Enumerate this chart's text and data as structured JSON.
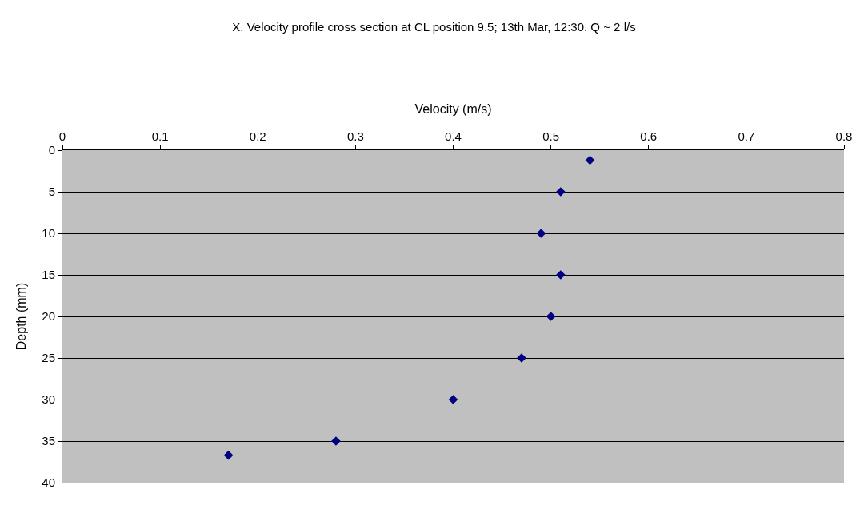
{
  "chart_data": {
    "type": "scatter",
    "title": "X. Velocity profile cross section at CL position 9.5; 13th Mar, 12:30. Q ~ 2 l/s",
    "xlabel": "Velocity (m/s)",
    "ylabel": "Depth (mm)",
    "x": [
      0.54,
      0.51,
      0.49,
      0.51,
      0.5,
      0.47,
      0.4,
      0.28,
      0.17
    ],
    "series": [
      {
        "color": "#000080",
        "values": [
          1.2,
          5,
          10,
          15,
          20,
          25,
          30,
          35,
          36.7
        ]
      }
    ],
    "xlim": [
      0,
      0.8
    ],
    "xticks": [
      0,
      0.1,
      0.2,
      0.3,
      0.4,
      0.5,
      0.6,
      0.7,
      0.8
    ],
    "ylim": [
      40,
      0
    ],
    "yticks": [
      0,
      5,
      10,
      15,
      20,
      25,
      30,
      35,
      40
    ],
    "grid": "y",
    "marker": "diamond"
  }
}
